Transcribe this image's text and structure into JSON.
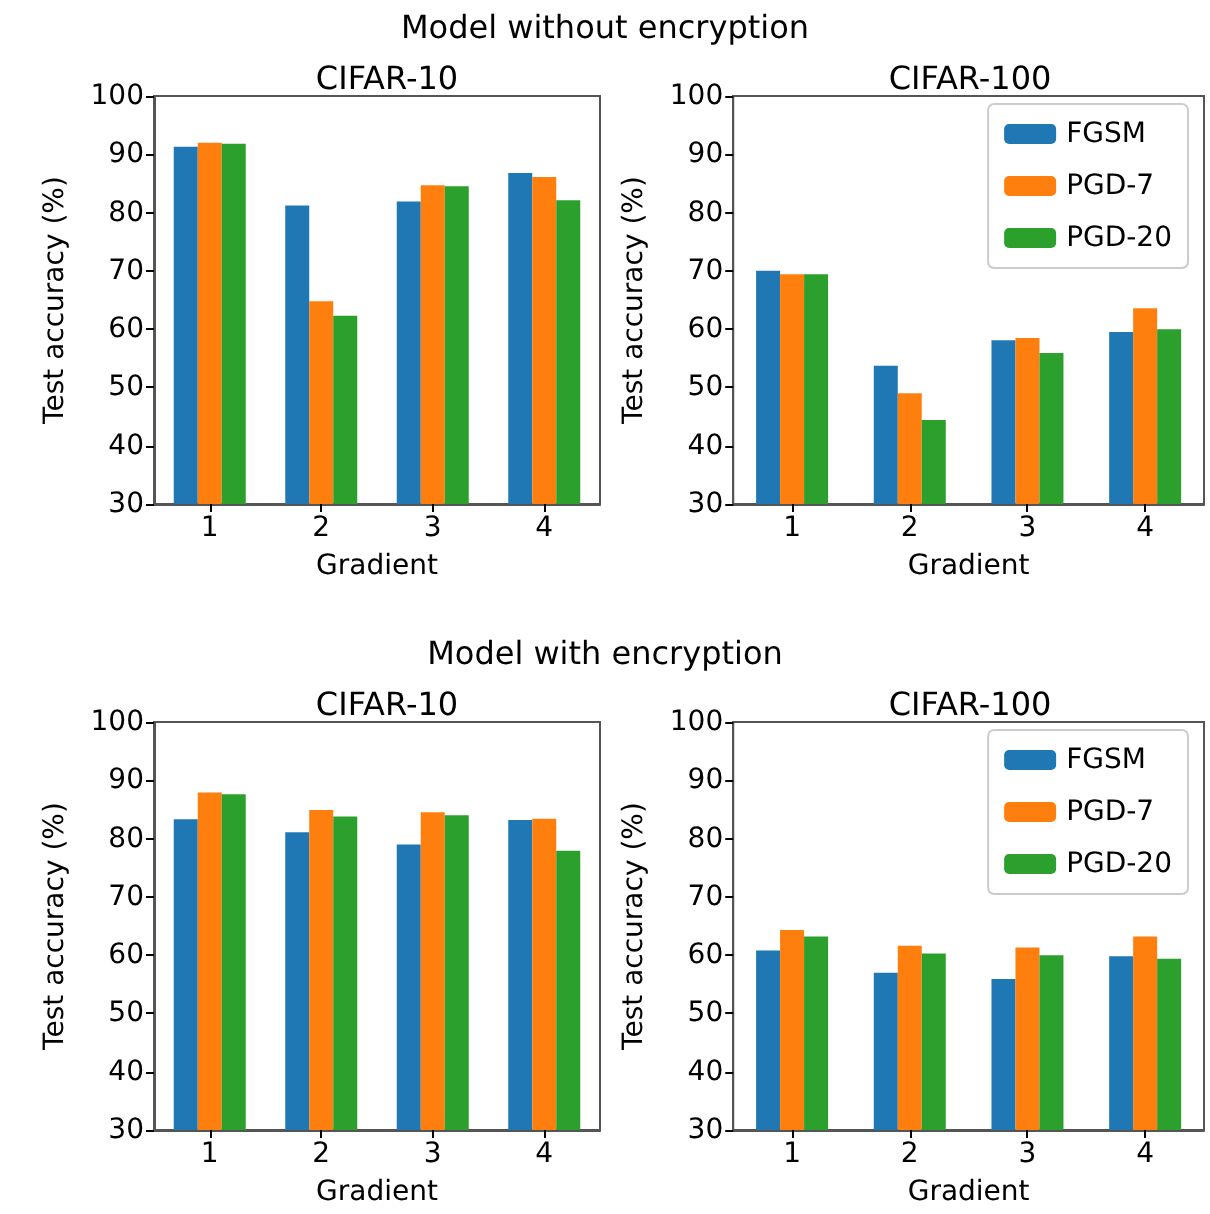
{
  "chart_data": [
    {
      "type": "bar",
      "title": "CIFAR-10",
      "annotations": [
        "Model without encryption"
      ],
      "xlabel": "Gradient",
      "ylabel": "Test accuracy (%)",
      "categories": [
        "1",
        "2",
        "3",
        "4"
      ],
      "ylim": [
        30,
        100
      ],
      "yticks": [
        30,
        40,
        50,
        60,
        70,
        80,
        90,
        100
      ],
      "legend": false,
      "series": [
        {
          "color": "#1f77b4",
          "values": [
            91.3,
            81.2,
            81.9,
            86.8
          ]
        },
        {
          "color": "#ff7f0e",
          "values": [
            92.0,
            64.8,
            84.7,
            86.1
          ]
        },
        {
          "color": "#2ca02c",
          "values": [
            91.8,
            62.3,
            84.5,
            82.1
          ]
        }
      ]
    },
    {
      "type": "bar",
      "title": "CIFAR-100",
      "xlabel": "Gradient",
      "ylabel": "Test accuracy (%)",
      "categories": [
        "1",
        "2",
        "3",
        "4"
      ],
      "ylim": [
        30,
        100
      ],
      "yticks": [
        30,
        40,
        50,
        60,
        70,
        80,
        90,
        100
      ],
      "legend": "top right",
      "series": [
        {
          "name": "FGSM",
          "color": "#1f77b4",
          "values": [
            70.0,
            53.7,
            58.1,
            59.5
          ]
        },
        {
          "name": "PGD-7",
          "color": "#ff7f0e",
          "values": [
            69.4,
            49.0,
            58.5,
            63.6
          ]
        },
        {
          "name": "PGD-20",
          "color": "#2ca02c",
          "values": [
            69.4,
            44.4,
            55.9,
            60.0
          ]
        }
      ]
    },
    {
      "type": "bar",
      "title": "CIFAR-10",
      "annotations": [
        "Model with encryption"
      ],
      "xlabel": "Gradient",
      "ylabel": "Test accuracy (%)",
      "categories": [
        "1",
        "2",
        "3",
        "4"
      ],
      "ylim": [
        30,
        100
      ],
      "yticks": [
        30,
        40,
        50,
        60,
        70,
        80,
        90,
        100
      ],
      "legend": false,
      "series": [
        {
          "color": "#1f77b4",
          "values": [
            83.3,
            81.1,
            79.0,
            83.2
          ]
        },
        {
          "color": "#ff7f0e",
          "values": [
            87.9,
            84.9,
            84.5,
            83.4
          ]
        },
        {
          "color": "#2ca02c",
          "values": [
            87.6,
            83.8,
            84.0,
            77.9
          ]
        }
      ]
    },
    {
      "type": "bar",
      "title": "CIFAR-100",
      "xlabel": "Gradient",
      "ylabel": "Test accuracy (%)",
      "categories": [
        "1",
        "2",
        "3",
        "4"
      ],
      "ylim": [
        30,
        100
      ],
      "yticks": [
        30,
        40,
        50,
        60,
        70,
        80,
        90,
        100
      ],
      "legend": "top right",
      "series": [
        {
          "name": "FGSM",
          "color": "#1f77b4",
          "values": [
            60.8,
            57.0,
            55.9,
            59.8
          ]
        },
        {
          "name": "PGD-7",
          "color": "#ff7f0e",
          "values": [
            64.3,
            61.6,
            61.3,
            63.2
          ]
        },
        {
          "name": "PGD-20",
          "color": "#2ca02c",
          "values": [
            63.2,
            60.3,
            60.0,
            59.4
          ]
        }
      ]
    }
  ]
}
